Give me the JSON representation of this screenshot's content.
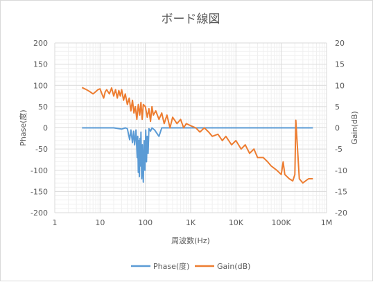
{
  "chart_data": {
    "type": "line",
    "title": "ボード線図",
    "xlabel": "周波数(Hz)",
    "ylabel_left": "Phase(度)",
    "ylabel_right": "Gain(dB)",
    "x_scale": "log",
    "xlim": [
      1,
      1000000
    ],
    "ylim_left": [
      -200,
      200
    ],
    "ylim_right": [
      -20,
      20
    ],
    "x_ticks": [
      {
        "value": 1,
        "label": "1"
      },
      {
        "value": 10,
        "label": "10"
      },
      {
        "value": 100,
        "label": "100"
      },
      {
        "value": 1000,
        "label": "1K"
      },
      {
        "value": 10000,
        "label": "10K"
      },
      {
        "value": 100000,
        "label": "100K"
      },
      {
        "value": 1000000,
        "label": "1M"
      }
    ],
    "y_ticks_left": [
      "200",
      "150",
      "100",
      "50",
      "0",
      "-50",
      "-100",
      "-150",
      "-200"
    ],
    "y_ticks_right": [
      "20",
      "15",
      "10",
      "5",
      "0",
      "-5",
      "-10",
      "-15",
      "-20"
    ],
    "grid": true,
    "legend_position": "bottom",
    "series": [
      {
        "name": "Phase(度)",
        "axis": "left",
        "color": "#5b9bd5",
        "x": [
          4,
          20,
          30,
          36,
          40,
          45,
          48,
          52,
          55,
          58,
          62,
          66,
          68,
          70,
          72,
          74,
          76,
          78,
          80,
          83,
          86,
          90,
          94,
          98,
          102,
          106,
          110,
          115,
          120,
          130,
          140,
          160,
          200,
          230,
          300,
          1000,
          10000,
          100000,
          500000
        ],
        "y": [
          0,
          0,
          -3,
          0,
          -2,
          -28,
          -5,
          -35,
          -8,
          -40,
          -5,
          -70,
          -20,
          -105,
          -30,
          -115,
          -25,
          -90,
          -10,
          -120,
          -40,
          -128,
          -30,
          -100,
          -5,
          -80,
          -20,
          -60,
          -2,
          -8,
          0,
          -5,
          -20,
          0,
          0,
          0,
          0,
          0,
          0
        ]
      },
      {
        "name": "Gain(dB)",
        "axis": "right",
        "color": "#ed7d31",
        "x": [
          4,
          5,
          6,
          7,
          8,
          9,
          10,
          11,
          12,
          13,
          14,
          16,
          18,
          20,
          22,
          24,
          26,
          28,
          30,
          33,
          36,
          40,
          44,
          48,
          52,
          56,
          60,
          65,
          70,
          75,
          80,
          85,
          90,
          100,
          110,
          120,
          130,
          140,
          150,
          170,
          200,
          230,
          260,
          300,
          350,
          400,
          500,
          600,
          700,
          800,
          1000,
          1300,
          1600,
          2000,
          2500,
          3000,
          4000,
          5000,
          6000,
          8000,
          10000,
          13000,
          16000,
          20000,
          25000,
          30000,
          40000,
          50000,
          60000,
          80000,
          100000,
          110000,
          120000,
          150000,
          180000,
          200000,
          210000,
          250000,
          300000,
          400000,
          500000
        ],
        "y": [
          9.5,
          9,
          8.5,
          8,
          8.5,
          9,
          9.2,
          8,
          7,
          8.5,
          9,
          8,
          9.4,
          7.5,
          9,
          7,
          8.8,
          7.5,
          9,
          6.5,
          8,
          5.5,
          7,
          4,
          6.5,
          3.5,
          5,
          2,
          5.5,
          3,
          6,
          2,
          5.5,
          5,
          2.5,
          4.5,
          1.5,
          5,
          3,
          4,
          2,
          3.5,
          1,
          3,
          0,
          2.5,
          1,
          2,
          0,
          1,
          0.5,
          0,
          -1,
          0,
          -1,
          -2,
          -1.5,
          -3,
          -2,
          -4,
          -3,
          -5,
          -4,
          -6,
          -5,
          -7,
          -7,
          -8,
          -9,
          -10,
          -11,
          -8,
          -11,
          -12,
          -12.5,
          -11,
          1.8,
          -12,
          -13,
          -12,
          -12
        ]
      }
    ]
  }
}
